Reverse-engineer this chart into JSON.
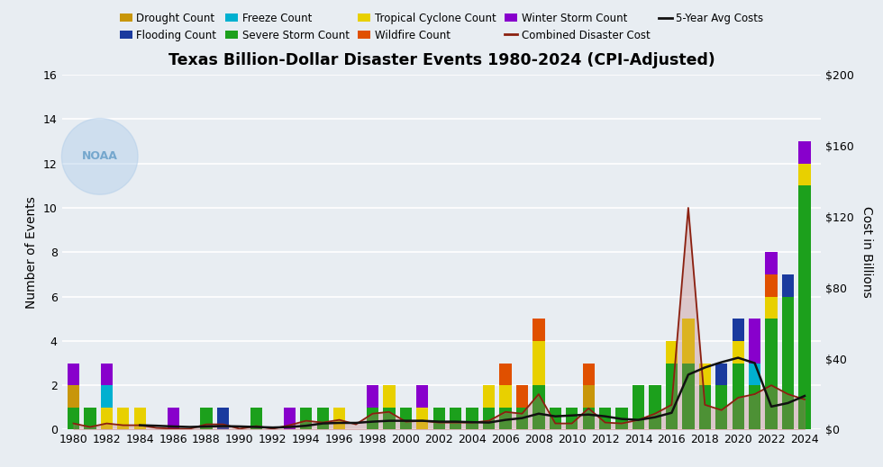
{
  "title": "Texas Billion-Dollar Disaster Events 1980-2024 (CPI-Adjusted)",
  "years": [
    1980,
    1981,
    1982,
    1983,
    1984,
    1985,
    1986,
    1987,
    1988,
    1989,
    1990,
    1991,
    1992,
    1993,
    1994,
    1995,
    1996,
    1997,
    1998,
    1999,
    2000,
    2001,
    2002,
    2003,
    2004,
    2005,
    2006,
    2007,
    2008,
    2009,
    2010,
    2011,
    2012,
    2013,
    2014,
    2015,
    2016,
    2017,
    2018,
    2019,
    2020,
    2021,
    2022,
    2023,
    2024
  ],
  "drought": [
    1,
    0,
    0,
    0,
    0,
    0,
    0,
    0,
    0,
    0,
    0,
    0,
    0,
    0,
    0,
    0,
    0,
    0,
    0,
    0,
    0,
    0,
    0,
    0,
    0,
    0,
    0,
    0,
    0,
    0,
    0,
    1,
    0,
    0,
    0,
    0,
    0,
    0,
    0,
    0,
    0,
    0,
    0,
    0,
    0
  ],
  "flooding": [
    0,
    0,
    0,
    0,
    0,
    0,
    0,
    0,
    0,
    1,
    0,
    0,
    0,
    0,
    0,
    0,
    0,
    0,
    0,
    0,
    0,
    0,
    0,
    0,
    0,
    0,
    0,
    0,
    0,
    0,
    0,
    0,
    0,
    0,
    0,
    0,
    0,
    0,
    0,
    1,
    1,
    0,
    0,
    1,
    0
  ],
  "freeze": [
    0,
    0,
    1,
    0,
    0,
    0,
    0,
    0,
    0,
    0,
    0,
    0,
    0,
    0,
    0,
    0,
    0,
    0,
    0,
    0,
    0,
    0,
    0,
    0,
    0,
    0,
    0,
    0,
    0,
    0,
    0,
    0,
    0,
    0,
    0,
    0,
    0,
    0,
    0,
    0,
    0,
    1,
    0,
    0,
    0
  ],
  "severe_storm": [
    1,
    1,
    0,
    0,
    0,
    0,
    0,
    0,
    1,
    0,
    0,
    1,
    0,
    0,
    1,
    1,
    0,
    0,
    1,
    1,
    1,
    0,
    1,
    1,
    1,
    1,
    1,
    1,
    2,
    1,
    1,
    1,
    1,
    1,
    2,
    2,
    3,
    3,
    2,
    2,
    3,
    2,
    5,
    6,
    11
  ],
  "tropical": [
    0,
    0,
    1,
    1,
    1,
    0,
    0,
    0,
    0,
    0,
    0,
    0,
    0,
    0,
    0,
    0,
    1,
    0,
    0,
    1,
    0,
    1,
    0,
    0,
    0,
    1,
    1,
    0,
    2,
    0,
    0,
    0,
    0,
    0,
    0,
    0,
    1,
    2,
    1,
    0,
    1,
    0,
    1,
    0,
    1
  ],
  "wildfire": [
    0,
    0,
    0,
    0,
    0,
    0,
    0,
    0,
    0,
    0,
    0,
    0,
    0,
    0,
    0,
    0,
    0,
    0,
    0,
    0,
    0,
    0,
    0,
    0,
    0,
    0,
    1,
    1,
    1,
    0,
    0,
    1,
    0,
    0,
    0,
    0,
    0,
    0,
    0,
    0,
    0,
    0,
    1,
    0,
    0
  ],
  "winter_storm": [
    1,
    0,
    1,
    0,
    0,
    0,
    1,
    0,
    0,
    0,
    0,
    0,
    0,
    1,
    0,
    0,
    0,
    0,
    1,
    0,
    0,
    1,
    0,
    0,
    0,
    0,
    0,
    0,
    0,
    0,
    0,
    0,
    0,
    0,
    0,
    0,
    0,
    0,
    0,
    0,
    0,
    2,
    1,
    0,
    1
  ],
  "combined_cost": [
    3.5,
    1.5,
    3.5,
    2.5,
    2.5,
    1.0,
    0.5,
    0.5,
    3.0,
    3.0,
    0.5,
    2.0,
    0.5,
    2.5,
    5.0,
    4.0,
    5.5,
    3.0,
    9.0,
    10.0,
    4.5,
    5.0,
    4.0,
    4.0,
    4.0,
    5.0,
    10.0,
    9.0,
    20.0,
    3.5,
    3.5,
    12.0,
    4.0,
    3.5,
    5.5,
    9.0,
    14.0,
    125.0,
    14.0,
    11.0,
    18.0,
    20.0,
    25.0,
    20.0,
    17.0
  ],
  "five_yr_avg": [
    null,
    null,
    null,
    null,
    2.5,
    2.2,
    1.8,
    1.5,
    1.8,
    2.0,
    1.8,
    1.5,
    1.2,
    1.5,
    2.2,
    3.5,
    3.8,
    3.8,
    4.5,
    5.0,
    5.0,
    5.0,
    4.5,
    4.5,
    4.2,
    4.0,
    5.5,
    6.5,
    9.0,
    7.5,
    8.0,
    8.5,
    7.5,
    6.0,
    5.5,
    7.0,
    9.5,
    31.0,
    35.0,
    38.0,
    40.5,
    37.5,
    13.0,
    15.0,
    19.0
  ],
  "colors": {
    "drought": "#c8960a",
    "flooding": "#1a3a9e",
    "freeze": "#00b0d0",
    "severe_storm": "#1ca01c",
    "tropical": "#e8d000",
    "wildfire": "#e05000",
    "winter_storm": "#8800cc",
    "combined_cost_line": "#8b2010",
    "five_yr_avg_line": "#111111",
    "fill_combined": "#c07070"
  },
  "ylabel_left": "Number of Events",
  "ylabel_right": "Cost in Billions",
  "ylim_left": [
    0,
    16
  ],
  "ylim_right": [
    0,
    200
  ],
  "yticks_left": [
    0,
    2,
    4,
    6,
    8,
    10,
    12,
    14,
    16
  ],
  "yticks_right": [
    0,
    40,
    80,
    120,
    160,
    200
  ],
  "ytick_labels_right": [
    "$0",
    "$40",
    "$80",
    "$120",
    "$160",
    "$200"
  ],
  "bg_color": "#e8edf2",
  "grid_color": "#ffffff"
}
